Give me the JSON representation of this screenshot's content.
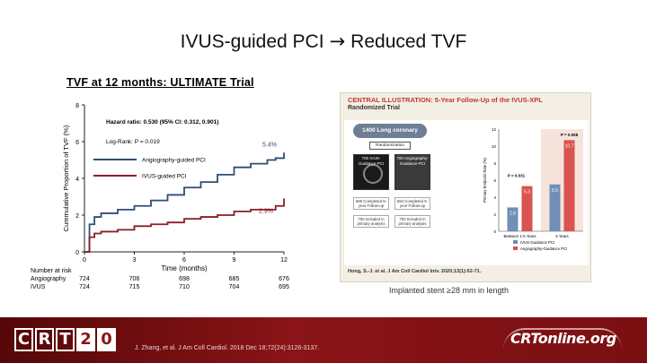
{
  "slide": {
    "title_left": "IVUS-guided PCI",
    "title_arrow": "→",
    "title_right": "Reduced TVF",
    "subtitle": "TVF  at  12  months: ULTIMATE Trial",
    "implanted_note": "Implanted stent ≥28 mm in length"
  },
  "km_chart": {
    "ylabel": "Cummulative Proportion of TVF (%)",
    "xlabel": "Time (months)",
    "yticks": [
      "0",
      "2",
      "4",
      "6",
      "8"
    ],
    "xticks": [
      "0",
      "3",
      "6",
      "9",
      "12"
    ],
    "hazard_text": "Hazard ratio: 0.530 (95% CI: 0.312, 0.901)",
    "logrank_text": "Log-Rank: P = 0.019",
    "end_label_angio": "5.4%",
    "end_label_ivus": "2.9%",
    "legend": [
      {
        "label": "Angiography-guided PCI",
        "color": "#2d4f73"
      },
      {
        "label": "IVUS-guided PCI",
        "color": "#8a1d2a"
      }
    ],
    "at_risk_title": "Number at risk",
    "at_risk": [
      {
        "label": "Angiography",
        "values": [
          "724",
          "706",
          "698",
          "685",
          "676"
        ]
      },
      {
        "label": "IVUS",
        "values": [
          "724",
          "715",
          "710",
          "704",
          "695"
        ]
      }
    ]
  },
  "chart_data": [
    {
      "type": "line",
      "ylabel": "Cummulative Proportion of TVF (%)",
      "xlabel": "Time (months)",
      "xlim": [
        0,
        12
      ],
      "ylim": [
        0,
        8
      ],
      "series": [
        {
          "name": "Angiography-guided PCI",
          "x": [
            0,
            0.3,
            0.6,
            1,
            2,
            3,
            4,
            5,
            6,
            7,
            8,
            9,
            10,
            11,
            11.5,
            12
          ],
          "y": [
            0,
            1.5,
            1.9,
            2.1,
            2.3,
            2.5,
            2.8,
            3.1,
            3.5,
            3.8,
            4.2,
            4.6,
            4.8,
            5.0,
            5.1,
            5.4
          ]
        },
        {
          "name": "IVUS-guided PCI",
          "x": [
            0,
            0.3,
            0.6,
            1,
            2,
            3,
            4,
            5,
            6,
            7,
            8,
            9,
            10,
            11,
            11.5,
            12
          ],
          "y": [
            0,
            0.8,
            1.0,
            1.1,
            1.2,
            1.4,
            1.5,
            1.6,
            1.8,
            1.9,
            2.0,
            2.2,
            2.3,
            2.3,
            2.5,
            2.9
          ]
        }
      ]
    },
    {
      "type": "bar",
      "categories": [
        "Between 1-5 Years",
        "5 Years"
      ],
      "series": [
        {
          "name": "IVUS-Guidance PCI",
          "values": [
            2.8,
            5.5
          ],
          "color": "#6f8fb5"
        },
        {
          "name": "Angiography-Guidance PCI",
          "values": [
            5.3,
            10.7
          ],
          "color": "#d9534f"
        }
      ],
      "ylim": [
        0,
        12
      ],
      "yticks": [
        "0",
        "2",
        "4",
        "6",
        "8",
        "10",
        "12"
      ],
      "ylabel": "Primary Endpoint Rate (%)",
      "p_values": [
        "P = 0.031",
        "P = 0.008"
      ]
    }
  ],
  "central_illustration": {
    "title": "CENTRAL ILLUSTRATION: 5-Year Follow-Up of the IVUS-XPL",
    "subtitle": "Randomized Trial",
    "lesion_label": "1400 Long coronary lesions",
    "randomization": "Randomization",
    "arm_ivus": "700 IVUS-Guidance PCI",
    "arm_angio": "700 Angiography-Guidance PCI",
    "complete_ivus": "599 Completed 5-year Follow-up",
    "complete_angio": "594 Completed 5-year Follow-up",
    "analysis_ivus": "700 Included in primary analysis",
    "analysis_angio": "700 Included in primary analysis",
    "citation": "Hong, S.-J. et al. J Am Coll Cardiol Intv. 2020;13(1):62-71."
  },
  "footer": {
    "logo_letters": [
      "C",
      "R",
      "T",
      "2",
      "0"
    ],
    "citation": "J. Zhang, et al. J Am Coll Cardiol. 2018 Dec 18;72(24):3126-3137.",
    "brand_right": "CRTonline.org"
  }
}
